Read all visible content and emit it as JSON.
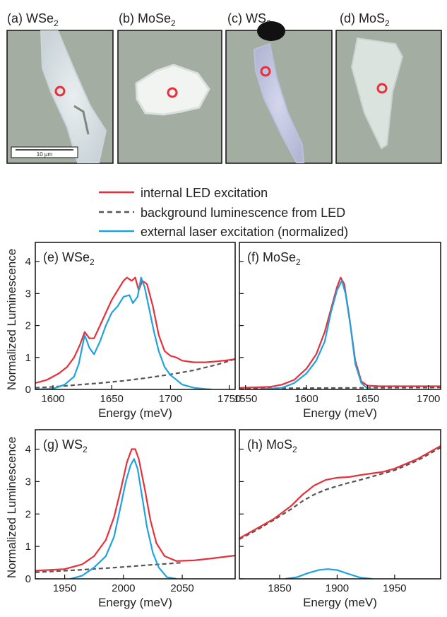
{
  "micrographs": [
    {
      "label": "(a) WSe",
      "sub": "2",
      "scale_bar": "10 µm"
    },
    {
      "label": "(b) MoSe",
      "sub": "2"
    },
    {
      "label": "(c) WS",
      "sub": "2"
    },
    {
      "label": "(d) MoS",
      "sub": "2"
    }
  ],
  "legend": {
    "placement": "top-center",
    "entries": [
      {
        "label": "internal LED excitation",
        "color": "#e8303a",
        "style": "solid"
      },
      {
        "label": "background luminescence from LED",
        "color": "#555555",
        "style": "dashed"
      },
      {
        "label": "external laser excitation (normalized)",
        "color": "#1fa3df",
        "style": "solid"
      }
    ]
  },
  "colors": {
    "led": "#e8303a",
    "background": "#555555",
    "laser": "#1fa3df",
    "micrograph_bg": "#a4ada1",
    "marker": "#e8303a"
  },
  "chart_data": [
    {
      "type": "line",
      "panel": "(e) WSe",
      "panel_sub": "2",
      "xlabel": "Energy (meV)",
      "ylabel": "Normalized Luminescence",
      "xlim": [
        1585,
        1755
      ],
      "ylim": [
        0,
        4.6
      ],
      "xticks": [
        1600,
        1650,
        1700,
        1750
      ],
      "yticks": [
        0,
        1,
        2,
        3,
        4
      ],
      "series": [
        {
          "key": "led",
          "x": [
            1585,
            1595,
            1605,
            1612,
            1618,
            1623,
            1627,
            1631,
            1635,
            1640,
            1645,
            1650,
            1655,
            1660,
            1663,
            1667,
            1670,
            1673,
            1676,
            1680,
            1685,
            1690,
            1695,
            1700,
            1705,
            1710,
            1720,
            1730,
            1740,
            1750,
            1755
          ],
          "y": [
            0.2,
            0.3,
            0.5,
            0.7,
            1.0,
            1.4,
            1.8,
            1.6,
            1.6,
            2.0,
            2.4,
            2.8,
            3.1,
            3.4,
            3.5,
            3.4,
            3.5,
            3.1,
            3.4,
            3.3,
            2.6,
            1.7,
            1.2,
            1.05,
            1.0,
            0.9,
            0.85,
            0.85,
            0.88,
            0.92,
            0.95
          ]
        },
        {
          "key": "background",
          "x": [
            1585,
            1600,
            1620,
            1640,
            1660,
            1680,
            1700,
            1720,
            1740,
            1755
          ],
          "y": [
            0.05,
            0.08,
            0.14,
            0.2,
            0.27,
            0.36,
            0.47,
            0.6,
            0.78,
            0.95
          ]
        },
        {
          "key": "laser",
          "x": [
            1585,
            1600,
            1610,
            1618,
            1622,
            1627,
            1631,
            1635,
            1640,
            1645,
            1650,
            1655,
            1660,
            1665,
            1668,
            1672,
            1675,
            1678,
            1682,
            1686,
            1690,
            1695,
            1700,
            1705,
            1710,
            1720,
            1730,
            1735
          ],
          "y": [
            0,
            0.02,
            0.15,
            0.4,
            0.8,
            1.7,
            1.3,
            1.1,
            1.5,
            2.0,
            2.4,
            2.6,
            2.9,
            2.95,
            2.7,
            2.9,
            3.5,
            3.2,
            2.5,
            1.8,
            1.2,
            0.7,
            0.45,
            0.3,
            0.15,
            0.05,
            0.01,
            0
          ]
        }
      ]
    },
    {
      "type": "line",
      "panel": "(f) MoSe",
      "panel_sub": "2",
      "xlabel": "Energy (meV)",
      "ylabel": "",
      "xlim": [
        1545,
        1710
      ],
      "ylim": [
        0,
        4.6
      ],
      "xticks": [
        1550,
        1600,
        1650,
        1700
      ],
      "yticks": [
        0,
        1,
        2,
        3,
        4
      ],
      "series": [
        {
          "key": "led",
          "x": [
            1545,
            1570,
            1580,
            1590,
            1600,
            1608,
            1615,
            1620,
            1625,
            1628,
            1631,
            1635,
            1640,
            1645,
            1650,
            1660,
            1680,
            1710
          ],
          "y": [
            0.05,
            0.08,
            0.15,
            0.3,
            0.65,
            1.1,
            1.8,
            2.5,
            3.2,
            3.5,
            3.3,
            2.3,
            0.9,
            0.25,
            0.12,
            0.1,
            0.1,
            0.1
          ]
        },
        {
          "key": "background",
          "x": [
            1545,
            1600,
            1650,
            1710
          ],
          "y": [
            0.03,
            0.04,
            0.05,
            0.06
          ]
        },
        {
          "key": "laser",
          "x": [
            1560,
            1580,
            1590,
            1600,
            1608,
            1615,
            1620,
            1625,
            1629,
            1632,
            1636,
            1640,
            1645,
            1650,
            1655
          ],
          "y": [
            0,
            0.05,
            0.2,
            0.5,
            0.9,
            1.5,
            2.4,
            3.1,
            3.4,
            3.0,
            2.0,
            0.8,
            0.2,
            0.03,
            0
          ]
        }
      ]
    },
    {
      "type": "line",
      "panel": "(g) WS",
      "panel_sub": "2",
      "xlabel": "Energy (meV)",
      "ylabel": "Normalized Luminescence",
      "xlim": [
        1925,
        2095
      ],
      "ylim": [
        0,
        4.6
      ],
      "xticks": [
        1950,
        2000,
        2050
      ],
      "yticks": [
        0,
        1,
        2,
        3,
        4
      ],
      "series": [
        {
          "key": "led",
          "x": [
            1925,
            1950,
            1965,
            1975,
            1985,
            1992,
            1998,
            2003,
            2007,
            2010,
            2013,
            2018,
            2023,
            2028,
            2035,
            2045,
            2060,
            2075,
            2095
          ],
          "y": [
            0.25,
            0.3,
            0.45,
            0.7,
            1.2,
            1.9,
            2.8,
            3.6,
            4.0,
            4.0,
            3.7,
            2.8,
            1.8,
            1.1,
            0.7,
            0.55,
            0.57,
            0.63,
            0.72
          ]
        },
        {
          "key": "background",
          "x": [
            1925,
            1960,
            1990,
            2020,
            2050
          ],
          "y": [
            0.2,
            0.27,
            0.34,
            0.42,
            0.5
          ]
        },
        {
          "key": "laser",
          "x": [
            1955,
            1965,
            1975,
            1985,
            1992,
            1998,
            2002,
            2006,
            2009,
            2012,
            2016,
            2020,
            2025,
            2030,
            2037,
            2045
          ],
          "y": [
            0,
            0.1,
            0.35,
            0.7,
            1.3,
            2.3,
            3.0,
            3.5,
            3.7,
            3.4,
            2.5,
            1.6,
            0.8,
            0.35,
            0.05,
            0
          ]
        }
      ]
    },
    {
      "type": "line",
      "panel": "(h) MoS",
      "panel_sub": "2",
      "xlabel": "Energy (meV)",
      "ylabel": "",
      "xlim": [
        1815,
        1990
      ],
      "ylim": [
        0,
        4.6
      ],
      "xticks": [
        1850,
        1900,
        1950
      ],
      "yticks": [
        0,
        1,
        2,
        3,
        4
      ],
      "series": [
        {
          "key": "led",
          "x": [
            1815,
            1830,
            1845,
            1860,
            1870,
            1880,
            1890,
            1900,
            1910,
            1920,
            1930,
            1940,
            1950,
            1960,
            1970,
            1980,
            1990
          ],
          "y": [
            1.25,
            1.55,
            1.85,
            2.25,
            2.6,
            2.88,
            3.05,
            3.12,
            3.14,
            3.2,
            3.25,
            3.3,
            3.4,
            3.55,
            3.7,
            3.9,
            4.1
          ]
        },
        {
          "key": "background",
          "x": [
            1815,
            1830,
            1845,
            1860,
            1870,
            1880,
            1890,
            1900,
            1910,
            1920,
            1930,
            1940,
            1950,
            1960,
            1970,
            1980,
            1990
          ],
          "y": [
            1.22,
            1.5,
            1.82,
            2.15,
            2.4,
            2.6,
            2.75,
            2.86,
            2.96,
            3.05,
            3.15,
            3.25,
            3.35,
            3.5,
            3.65,
            3.85,
            4.05
          ]
        },
        {
          "key": "laser",
          "x": [
            1855,
            1865,
            1875,
            1885,
            1892,
            1900,
            1910,
            1920,
            1930
          ],
          "y": [
            0,
            0.05,
            0.18,
            0.28,
            0.3,
            0.27,
            0.15,
            0.04,
            0
          ]
        }
      ]
    }
  ]
}
